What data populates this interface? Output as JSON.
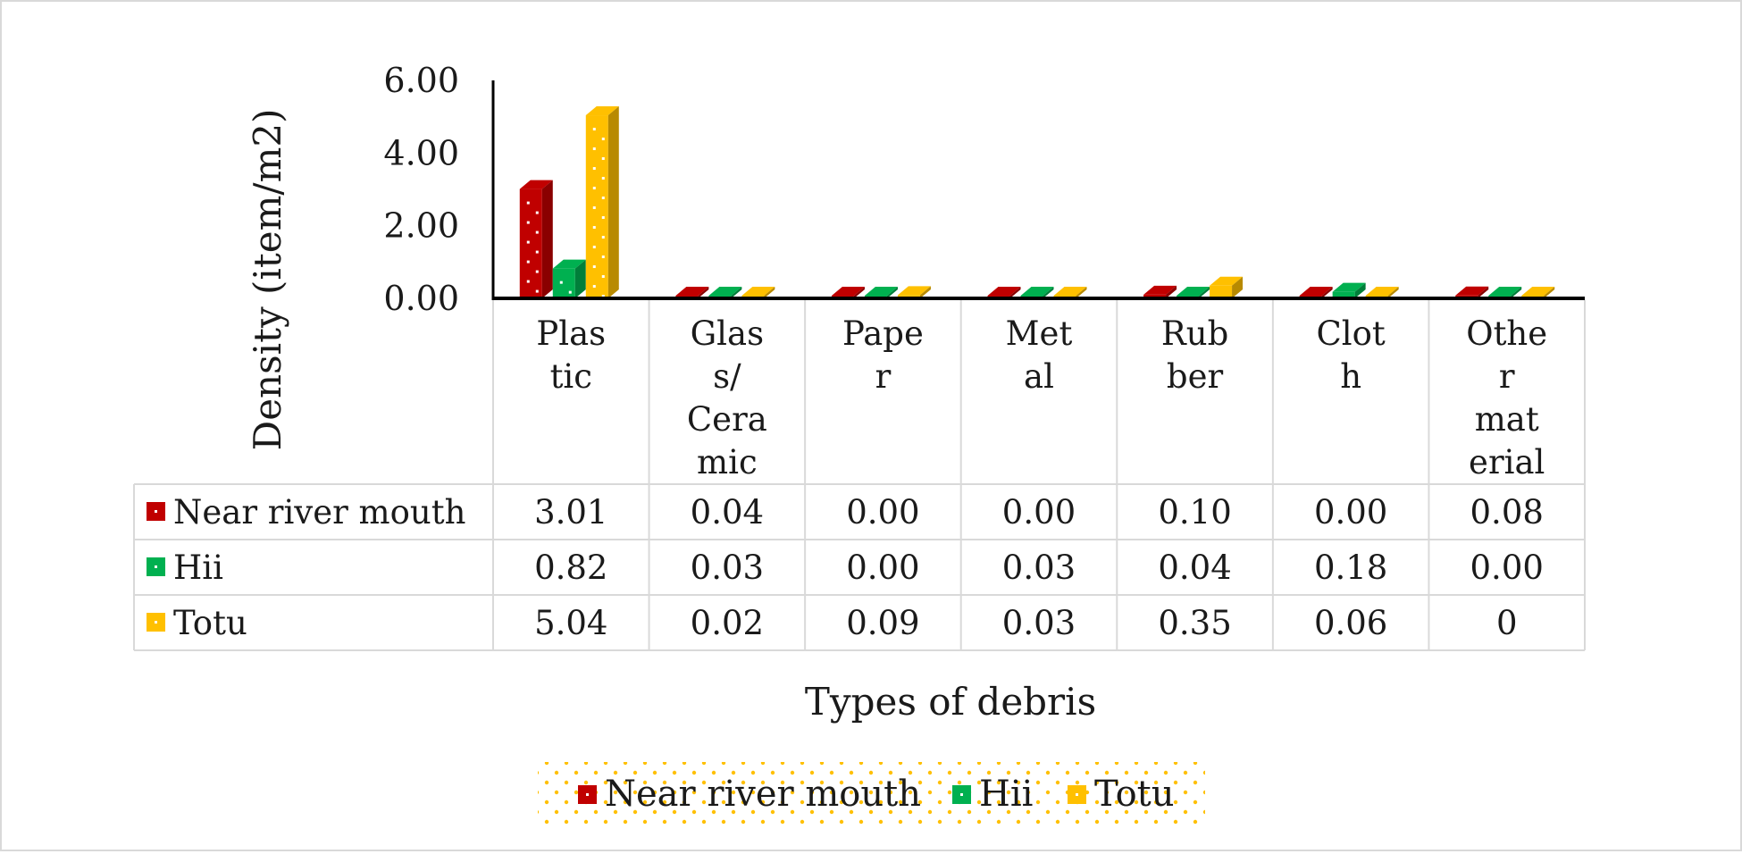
{
  "chart_data": {
    "type": "bar",
    "variant": "3d clustered column with data table",
    "xlabel": "Types of debris",
    "ylabel": "Density   (item/m2)",
    "ylim": [
      0,
      6
    ],
    "yticks": [
      "0.00",
      "2.00",
      "4.00",
      "6.00"
    ],
    "grid": false,
    "legend_position": "bottom",
    "categories": [
      [
        "Plas",
        "tic"
      ],
      [
        "Glas",
        "s/",
        "Cera",
        "mic"
      ],
      [
        "Pape",
        "r"
      ],
      [
        "Met",
        "al"
      ],
      [
        "Rub",
        "ber"
      ],
      [
        "Clot",
        "h"
      ],
      [
        "Othe",
        "r",
        "mat",
        "erial"
      ]
    ],
    "series": [
      {
        "name": "Near river mouth",
        "color": "#c00000",
        "values": [
          3.01,
          0.04,
          0.0,
          0.0,
          0.1,
          0.0,
          0.08
        ],
        "labels": [
          "3.01",
          "0.04",
          "0.00",
          "0.00",
          "0.10",
          "0.00",
          "0.08"
        ]
      },
      {
        "name": "Hii",
        "color": "#00b050",
        "values": [
          0.82,
          0.03,
          0.0,
          0.03,
          0.04,
          0.18,
          0.0
        ],
        "labels": [
          "0.82",
          "0.03",
          "0.00",
          "0.03",
          "0.04",
          "0.18",
          "0.00"
        ]
      },
      {
        "name": "Totu",
        "color": "#ffc000",
        "values": [
          5.04,
          0.02,
          0.09,
          0.03,
          0.35,
          0.06,
          0
        ],
        "labels": [
          "5.04",
          "0.02",
          "0.09",
          "0.03",
          "0.35",
          "0.06",
          "0"
        ]
      }
    ]
  }
}
